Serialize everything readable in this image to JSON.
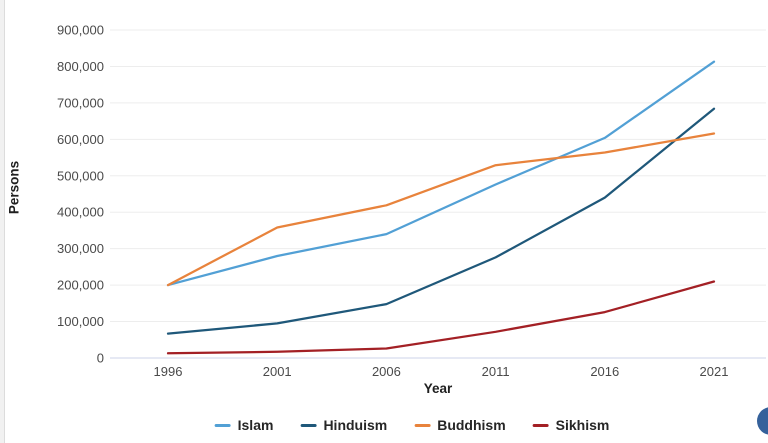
{
  "chart_data": {
    "type": "line",
    "title": "",
    "xlabel": "Year",
    "ylabel": "Persons",
    "x": [
      1996,
      2001,
      2006,
      2011,
      2016,
      2021
    ],
    "xtick_labels": [
      "1996",
      "2001",
      "2006",
      "2011",
      "2016",
      "2021"
    ],
    "ylim": [
      0,
      900000
    ],
    "ytick_step": 100000,
    "ytick_labels": [
      "0",
      "100,000",
      "200,000",
      "300,000",
      "400,000",
      "500,000",
      "600,000",
      "700,000",
      "800,000",
      "900,000"
    ],
    "grid": true,
    "legend_position": "bottom",
    "series": [
      {
        "name": "Islam",
        "color": "#52a0d5",
        "values": [
          200000,
          280000,
          340000,
          476000,
          604000,
          813000
        ]
      },
      {
        "name": "Hinduism",
        "color": "#1f587a",
        "values": [
          67000,
          95000,
          148000,
          276000,
          440000,
          684000
        ]
      },
      {
        "name": "Buddhism",
        "color": "#e8833c",
        "values": [
          200000,
          358000,
          419000,
          529000,
          564000,
          616000
        ]
      },
      {
        "name": "Sikhism",
        "color": "#a32025",
        "values": [
          13000,
          17000,
          26000,
          72000,
          126000,
          210000
        ]
      }
    ],
    "colors": {
      "gridline": "#ededed",
      "zero_axis_line": "#dde2f1",
      "tick_text": "#4a4a4a"
    }
  },
  "fab": {
    "icon": "chat-fab-icon",
    "color": "#35619b"
  }
}
